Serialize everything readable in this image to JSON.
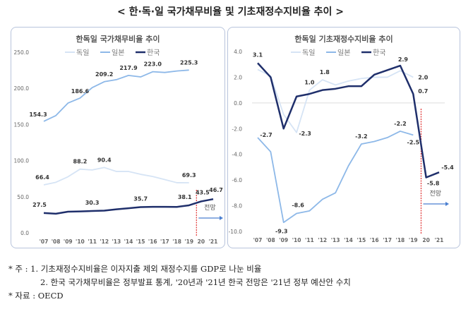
{
  "title": "< 한·독·일 국가채무비율 및 기초재정수지비율 추이 >",
  "chart_data": [
    {
      "type": "line",
      "title": "한독일 국가채무비율 추이",
      "categories": [
        "'07",
        "'08",
        "'09",
        "'10",
        "'11",
        "'12",
        "'13",
        "'14",
        "'15",
        "'16",
        "'17",
        "'18",
        "'19",
        "20",
        "'21"
      ],
      "ylim": [
        0,
        250
      ],
      "yticks": [
        "0.0",
        "50.0",
        "100.0",
        "150.0",
        "200.0",
        "250.0"
      ],
      "grid": false,
      "legend": "top",
      "series": [
        {
          "name": "독일",
          "color": "#d6e4f5",
          "values": [
            66.4,
            70,
            77.6,
            88.2,
            87,
            90.4,
            85,
            85,
            81,
            78,
            73.7,
            69.4,
            69.3,
            null,
            null
          ],
          "labels": {
            "0": "66.4",
            "3": "88.2",
            "5": "90.4",
            "12": "69.3"
          }
        },
        {
          "name": "일본",
          "color": "#8db8e8",
          "values": [
            154.3,
            162.3,
            179.6,
            186.6,
            201,
            209.2,
            212,
            217.9,
            215.8,
            223.0,
            222,
            224,
            225.3,
            null,
            null
          ],
          "labels": {
            "0": "154.3",
            "3": "186.6",
            "5": "209.2",
            "7": "217.9",
            "9": "223.0",
            "12": "225.3"
          }
        },
        {
          "name": "한국",
          "color": "#1f2f6b",
          "values": [
            27.5,
            26.5,
            29.3,
            29.7,
            30.3,
            30.8,
            32.6,
            34.1,
            35.7,
            36,
            36,
            35.9,
            38.1,
            43.5,
            46.7
          ],
          "labels": {
            "0": "27.5",
            "4": "30.3",
            "8": "35.7",
            "12": "38.1",
            "13": "43.5",
            "14": "46.7"
          }
        }
      ],
      "forecast_label": "전망"
    },
    {
      "type": "line",
      "title": "한독일 기초재정수지비율 추이",
      "categories": [
        "'07",
        "'08",
        "'09",
        "'10",
        "'11",
        "'12",
        "'13",
        "'14",
        "'15",
        "'16",
        "'17",
        "'18",
        "'19",
        "20",
        "'21"
      ],
      "ylim": [
        -10,
        4
      ],
      "yticks": [
        "-10.0",
        "-8.0",
        "-6.0",
        "-4.0",
        "-2.0",
        "0.0",
        "2.0",
        "4.0"
      ],
      "grid": false,
      "legend": "top",
      "series": [
        {
          "name": "독일",
          "color": "#d6e4f5",
          "values": [
            2.6,
            2.1,
            -0.9,
            -2.3,
            1.0,
            1.8,
            1.4,
            1.7,
            1.9,
            2.0,
            2.0,
            2.5,
            2.0,
            null,
            null
          ],
          "labels": {
            "3": "-2.3",
            "4": "1.0",
            "5": "1.8",
            "12": "2.0"
          }
        },
        {
          "name": "일본",
          "color": "#8db8e8",
          "values": [
            -2.7,
            -3.8,
            -9.3,
            -8.6,
            -8.4,
            -7.5,
            -7.0,
            -4.9,
            -3.2,
            -3.0,
            -2.7,
            -2.2,
            -2.5,
            null,
            null
          ],
          "labels": {
            "0": "-2.7",
            "2": "-9.3",
            "3": "-8.6",
            "8": "-3.2",
            "11": "-2.2",
            "12": "-2.5"
          }
        },
        {
          "name": "한국",
          "color": "#1f2f6b",
          "values": [
            3.1,
            2.0,
            -2.0,
            0.5,
            0.7,
            1.0,
            1.1,
            1.3,
            1.3,
            2.2,
            2.55,
            2.9,
            0.7,
            -5.8,
            -5.4
          ],
          "labels": {
            "0": "3.1",
            "11": "2.9",
            "12": "0.7",
            "13": "-5.8",
            "14": "-5.4"
          }
        }
      ],
      "forecast_label": "전망"
    }
  ],
  "notes": {
    "line1": "* 주 : 1. 기초재정수지비율은 이자지출 제외 재정수지를 GDP로 나눈 비율",
    "line2": "2. 한국 국가채무비율은 정부발표 통계, '20년과 '21년 한국 전망은 '21년 정부 예산안 수치",
    "line3": "* 자료 : OECD"
  }
}
